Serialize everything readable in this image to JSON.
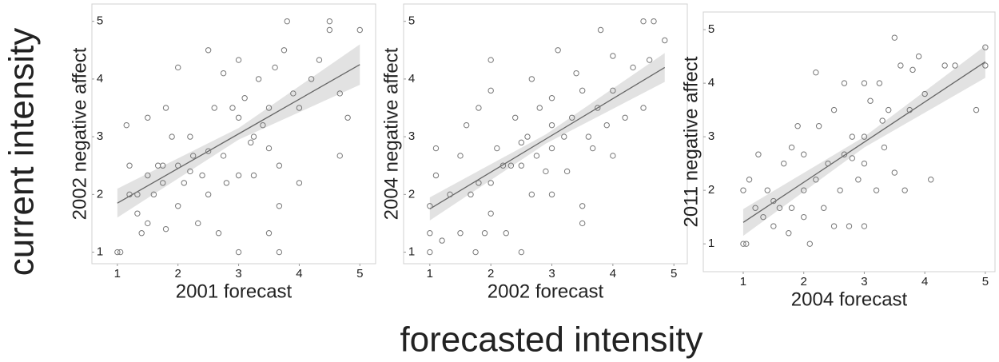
{
  "figure": {
    "ylabel": "current intensity",
    "xlabel": "forecasted intensity"
  },
  "chart_data": [
    {
      "type": "scatter",
      "xlabel": "2001 forecast",
      "ylabel": "2002 negative affect",
      "color": "#777777",
      "fit_color": "#666666",
      "band_color": "#e2e2e2",
      "x": [
        1,
        1.05,
        1.15,
        1.2,
        1.2,
        1.33,
        1.33,
        1.4,
        1.5,
        1.5,
        1.5,
        1.6,
        1.67,
        1.75,
        1.8,
        1.8,
        1.9,
        2,
        2,
        2,
        2.1,
        2.2,
        2.25,
        2.33,
        2.4,
        2.5,
        2.5,
        2.5,
        2.6,
        2.67,
        2.75,
        2.75,
        2.8,
        2.9,
        3,
        3,
        3,
        3,
        3.1,
        3.2,
        3.25,
        3.33,
        3.4,
        3.5,
        3.5,
        3.6,
        3.67,
        3.67,
        3.67,
        3.75,
        3.8,
        3.9,
        4,
        4,
        4.2,
        4.33,
        4.5,
        4.5,
        4.67,
        4.67,
        4.8,
        5,
        3.5,
        2.2,
        1.75,
        3.25
      ],
      "y": [
        1,
        1,
        3.2,
        2.5,
        2,
        2,
        1.67,
        1.33,
        3.33,
        2.33,
        1.5,
        2,
        2.5,
        2.2,
        3.5,
        1.4,
        3,
        4.2,
        2.5,
        1.8,
        2.2,
        3,
        2.67,
        1.5,
        2.33,
        4.5,
        2.75,
        2,
        3.5,
        1.33,
        4.1,
        2.67,
        2.2,
        3.5,
        4.33,
        3.33,
        2.33,
        1,
        3.67,
        2.9,
        2.33,
        4,
        3.2,
        3.5,
        1.33,
        4.2,
        1,
        1.8,
        2.5,
        4.5,
        5,
        3.75,
        3.5,
        2.2,
        4,
        4.33,
        5,
        4.85,
        2.67,
        3.75,
        3.33,
        4.85,
        2.8,
        2.4,
        2.5,
        3
      ],
      "fit": {
        "x": [
          1,
          3,
          5
        ],
        "y": [
          1.85,
          3.05,
          4.25
        ],
        "lower": [
          1.6,
          2.95,
          3.9
        ],
        "upper": [
          2.1,
          3.15,
          4.6
        ]
      },
      "xlim": [
        0.58,
        5.26
      ],
      "ylim": [
        0.8,
        5.3
      ],
      "xticks": [
        1,
        2,
        3,
        4,
        5
      ],
      "yticks": [
        1,
        2,
        3,
        4,
        5
      ]
    },
    {
      "type": "scatter",
      "xlabel": "2002 forecast",
      "ylabel": "2004 negative affect",
      "color": "#777777",
      "fit_color": "#666666",
      "band_color": "#e2e2e2",
      "x": [
        1,
        1,
        1,
        1.1,
        1.1,
        1.2,
        1.33,
        1.5,
        1.5,
        1.6,
        1.67,
        1.75,
        1.8,
        1.9,
        2,
        2,
        2,
        2,
        2.1,
        2.25,
        2.33,
        2.4,
        2.5,
        2.5,
        2.6,
        2.67,
        2.67,
        2.75,
        2.8,
        2.9,
        3,
        3,
        3,
        3.1,
        3.2,
        3.25,
        3.33,
        3.4,
        3.5,
        3.5,
        3.5,
        3.6,
        3.67,
        3.75,
        3.8,
        3.9,
        4,
        4,
        4,
        4.2,
        4.33,
        4.5,
        4.5,
        4.6,
        4.67,
        4.85,
        2.2,
        1.8,
        3,
        2.5
      ],
      "y": [
        1,
        1.33,
        1.8,
        2.33,
        2.8,
        1.2,
        2,
        1.33,
        2.67,
        3.2,
        2,
        1,
        3.5,
        1.33,
        4.33,
        3.8,
        2.2,
        1.67,
        2.8,
        1.33,
        2.5,
        3.33,
        1,
        2.5,
        3,
        4,
        2,
        2.67,
        3.5,
        2.4,
        3.67,
        3.2,
        2,
        4.5,
        3,
        2.4,
        3.33,
        4.1,
        3.8,
        1.5,
        1.8,
        3,
        2.8,
        3.5,
        4.85,
        3.2,
        2.67,
        3.8,
        4.4,
        3.33,
        4.2,
        3.5,
        5,
        4.33,
        5,
        4.67,
        2.5,
        2.2,
        2.8,
        2.9
      ],
      "fit": {
        "x": [
          1,
          2.9,
          4.85
        ],
        "y": [
          1.75,
          2.96,
          4.2
        ],
        "lower": [
          1.55,
          2.88,
          3.95
        ],
        "upper": [
          1.95,
          3.04,
          4.45
        ]
      },
      "xlim": [
        0.57,
        5.22
      ],
      "ylim": [
        0.8,
        5.3
      ],
      "xticks": [
        1,
        2,
        3,
        4,
        5
      ],
      "yticks": [
        1,
        2,
        3,
        4,
        5
      ]
    },
    {
      "type": "scatter",
      "xlabel": "2004 forecast",
      "ylabel": "2011 negative affect",
      "color": "#777777",
      "fit_color": "#666666",
      "band_color": "#e2e2e2",
      "x": [
        1,
        1,
        1.05,
        1.1,
        1.2,
        1.25,
        1.33,
        1.4,
        1.5,
        1.6,
        1.67,
        1.75,
        1.8,
        1.8,
        1.9,
        2,
        2,
        2,
        2.1,
        2.2,
        2.25,
        2.33,
        2.4,
        2.5,
        2.5,
        2.6,
        2.67,
        2.67,
        2.75,
        2.8,
        2.9,
        3,
        3,
        3,
        3,
        3.1,
        3.2,
        3.25,
        3.33,
        3.4,
        3.5,
        3.5,
        3.6,
        3.67,
        3.75,
        3.8,
        3.9,
        4,
        4.1,
        4.33,
        4.5,
        4.85,
        5,
        5,
        1.5,
        2.2,
        2.8,
        3.3
      ],
      "y": [
        1,
        2,
        1,
        2.2,
        1.67,
        2.67,
        1.5,
        2,
        1.33,
        1.67,
        2.5,
        1.2,
        1.67,
        2.8,
        3.2,
        2,
        1.5,
        2.67,
        1,
        4.2,
        3.2,
        1.67,
        2.5,
        1.33,
        3.5,
        2,
        4,
        2.67,
        1.33,
        3,
        2.2,
        4,
        3,
        2.5,
        1.33,
        3.67,
        2,
        4,
        2.8,
        3.5,
        4.85,
        2.33,
        4.33,
        2,
        3.5,
        4.25,
        4.5,
        3.8,
        2.2,
        4.33,
        4.33,
        3.5,
        4.67,
        4.33,
        1.8,
        2.2,
        2.6,
        3.3
      ],
      "fit": {
        "x": [
          1,
          3,
          5
        ],
        "y": [
          1.4,
          2.9,
          4.4
        ],
        "lower": [
          1.15,
          2.8,
          4.1
        ],
        "upper": [
          1.65,
          3,
          4.7
        ]
      },
      "xlim": [
        0.34,
        5.16
      ],
      "ylim": [
        0.48,
        5.33
      ],
      "xticks": [
        1,
        2,
        3,
        4,
        5
      ],
      "yticks": [
        1,
        2,
        3,
        4,
        5
      ]
    }
  ]
}
